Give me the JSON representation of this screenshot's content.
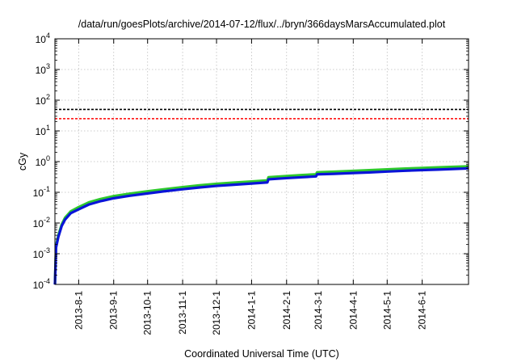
{
  "chart_data": {
    "type": "line",
    "title": "/data/run/goesPlots/archive/2014-07-12/flux/../bryn/366daysMarsAccumulated.plot",
    "xlabel": "Coordinated Universal Time (UTC)",
    "ylabel": "cGy",
    "xscale": "time",
    "yscale": "log",
    "xlim": [
      "2013-07-11",
      "2014-07-12"
    ],
    "ylim": [
      0.0001,
      10000
    ],
    "grid": true,
    "x_ticks": [
      "2013-8-1",
      "2013-9-1",
      "2013-10-1",
      "2013-11-1",
      "2013-12-1",
      "2014-1-1",
      "2014-2-1",
      "2014-3-1",
      "2014-4-1",
      "2014-5-1",
      "2014-6-1"
    ],
    "y_ticks": [
      {
        "value": 0.0001,
        "base": "10",
        "exp": "-4"
      },
      {
        "value": 0.001,
        "base": "10",
        "exp": "-3"
      },
      {
        "value": 0.01,
        "base": "10",
        "exp": "-2"
      },
      {
        "value": 0.1,
        "base": "10",
        "exp": "-1"
      },
      {
        "value": 1,
        "base": "10",
        "exp": "0"
      },
      {
        "value": 10,
        "base": "10",
        "exp": "1"
      },
      {
        "value": 100,
        "base": "10",
        "exp": "2"
      },
      {
        "value": 1000,
        "base": "10",
        "exp": "3"
      },
      {
        "value": 10000,
        "base": "10",
        "exp": "4"
      }
    ],
    "reference_lines": [
      {
        "y": 50,
        "color": "#000000",
        "style": "dashed"
      },
      {
        "y": 25,
        "color": "#ff0000",
        "style": "dashed"
      }
    ],
    "series": [
      {
        "color": "#2ec82e",
        "points": [
          [
            "2013-07-11",
            0.0001
          ],
          [
            "2013-07-12",
            0.0018
          ],
          [
            "2013-07-14",
            0.004
          ],
          [
            "2013-07-17",
            0.009
          ],
          [
            "2013-07-20",
            0.015
          ],
          [
            "2013-07-25",
            0.024
          ],
          [
            "2013-08-01",
            0.033
          ],
          [
            "2013-08-10",
            0.047
          ],
          [
            "2013-08-20",
            0.06
          ],
          [
            "2013-09-01",
            0.075
          ],
          [
            "2013-09-15",
            0.09
          ],
          [
            "2013-10-01",
            0.108
          ],
          [
            "2013-10-15",
            0.125
          ],
          [
            "2013-11-01",
            0.148
          ],
          [
            "2013-11-15",
            0.168
          ],
          [
            "2013-12-01",
            0.19
          ],
          [
            "2013-12-15",
            0.205
          ],
          [
            "2014-01-01",
            0.225
          ],
          [
            "2014-01-15",
            0.245
          ],
          [
            "2014-01-16",
            0.31
          ],
          [
            "2014-02-01",
            0.34
          ],
          [
            "2014-02-15",
            0.365
          ],
          [
            "2014-02-27",
            0.385
          ],
          [
            "2014-02-28",
            0.45
          ],
          [
            "2014-03-15",
            0.47
          ],
          [
            "2014-04-01",
            0.5
          ],
          [
            "2014-04-15",
            0.525
          ],
          [
            "2014-05-01",
            0.56
          ],
          [
            "2014-05-15",
            0.59
          ],
          [
            "2014-06-01",
            0.62
          ],
          [
            "2014-06-15",
            0.65
          ],
          [
            "2014-07-01",
            0.68
          ],
          [
            "2014-07-12",
            0.7
          ]
        ]
      },
      {
        "color": "#0a14d8",
        "points": [
          [
            "2013-07-11",
            0.0001
          ],
          [
            "2013-07-12",
            0.0016
          ],
          [
            "2013-07-14",
            0.0035
          ],
          [
            "2013-07-17",
            0.008
          ],
          [
            "2013-07-20",
            0.013
          ],
          [
            "2013-07-25",
            0.021
          ],
          [
            "2013-08-01",
            0.028
          ],
          [
            "2013-08-10",
            0.04
          ],
          [
            "2013-08-20",
            0.051
          ],
          [
            "2013-09-01",
            0.064
          ],
          [
            "2013-09-15",
            0.077
          ],
          [
            "2013-10-01",
            0.092
          ],
          [
            "2013-10-15",
            0.107
          ],
          [
            "2013-11-01",
            0.126
          ],
          [
            "2013-11-15",
            0.143
          ],
          [
            "2013-12-01",
            0.162
          ],
          [
            "2013-12-15",
            0.175
          ],
          [
            "2014-01-01",
            0.193
          ],
          [
            "2014-01-15",
            0.21
          ],
          [
            "2014-01-16",
            0.265
          ],
          [
            "2014-02-01",
            0.29
          ],
          [
            "2014-02-15",
            0.31
          ],
          [
            "2014-02-27",
            0.33
          ],
          [
            "2014-02-28",
            0.385
          ],
          [
            "2014-03-15",
            0.4
          ],
          [
            "2014-04-01",
            0.425
          ],
          [
            "2014-04-15",
            0.445
          ],
          [
            "2014-05-01",
            0.475
          ],
          [
            "2014-05-15",
            0.5
          ],
          [
            "2014-06-01",
            0.53
          ],
          [
            "2014-06-15",
            0.55
          ],
          [
            "2014-07-01",
            0.58
          ],
          [
            "2014-07-12",
            0.6
          ]
        ]
      }
    ]
  }
}
